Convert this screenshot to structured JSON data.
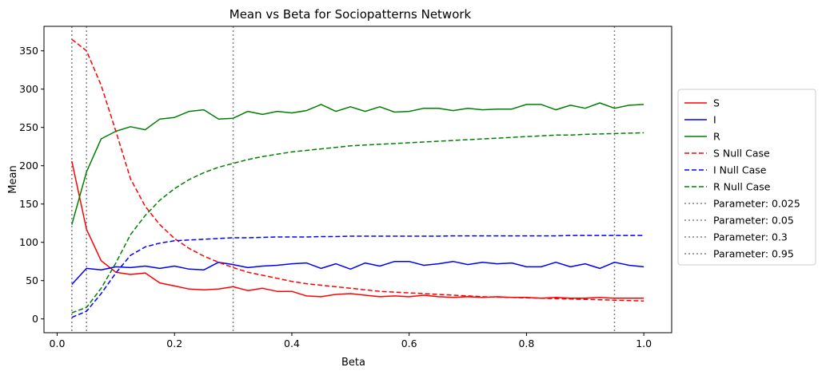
{
  "chart_data": {
    "type": "line",
    "title": "Mean vs Beta for Sociopatterns Network",
    "xlabel": "Beta",
    "ylabel": "Mean",
    "xlim": [
      -0.0225,
      1.0475
    ],
    "ylim": [
      -18,
      382
    ],
    "xticks": [
      0.0,
      0.2,
      0.4,
      0.6,
      0.8,
      1.0
    ],
    "xtick_labels": [
      "0.0",
      "0.2",
      "0.4",
      "0.6",
      "0.8",
      "1.0"
    ],
    "yticks": [
      0,
      50,
      100,
      150,
      200,
      250,
      300,
      350
    ],
    "ytick_labels": [
      "0",
      "50",
      "100",
      "150",
      "200",
      "250",
      "300",
      "350"
    ],
    "grid": false,
    "legend_position": "outside-right",
    "x": [
      0.025,
      0.05,
      0.075,
      0.1,
      0.125,
      0.15,
      0.175,
      0.2,
      0.225,
      0.25,
      0.275,
      0.3,
      0.325,
      0.35,
      0.375,
      0.4,
      0.425,
      0.45,
      0.475,
      0.5,
      0.525,
      0.55,
      0.575,
      0.6,
      0.625,
      0.65,
      0.675,
      0.7,
      0.725,
      0.75,
      0.775,
      0.8,
      0.825,
      0.85,
      0.875,
      0.9,
      0.925,
      0.95,
      0.975,
      1.0
    ],
    "series": [
      {
        "name": "S",
        "color": "#ff0000",
        "style": "solid",
        "values": [
          206,
          117,
          76,
          61,
          58,
          60,
          47,
          43,
          39,
          38,
          39,
          42,
          37,
          40,
          36,
          36,
          30,
          29,
          32,
          33,
          31,
          29,
          30,
          29,
          31,
          29,
          28,
          29,
          28,
          29,
          28,
          28,
          27,
          28,
          27,
          27,
          28,
          27,
          27,
          27
        ]
      },
      {
        "name": "I",
        "color": "#0000ff",
        "style": "solid",
        "values": [
          45,
          66,
          64,
          68,
          67,
          69,
          66,
          69,
          65,
          64,
          74,
          71,
          67,
          69,
          70,
          72,
          73,
          66,
          72,
          65,
          73,
          69,
          75,
          75,
          70,
          72,
          75,
          71,
          74,
          72,
          73,
          68,
          68,
          74,
          68,
          72,
          66,
          74,
          70,
          68
        ]
      },
      {
        "name": "R",
        "color": "#008000",
        "style": "solid",
        "values": [
          123,
          192,
          235,
          245,
          251,
          247,
          261,
          263,
          271,
          273,
          261,
          262,
          271,
          267,
          271,
          269,
          272,
          280,
          271,
          277,
          271,
          277,
          270,
          271,
          275,
          275,
          272,
          275,
          273,
          274,
          274,
          280,
          280,
          273,
          279,
          275,
          282,
          275,
          279,
          280
        ]
      },
      {
        "name": "S Null Case",
        "color": "#ff0000",
        "style": "dashed",
        "values": [
          365,
          350,
          305,
          245,
          183,
          147,
          123,
          105,
          92,
          82,
          74,
          67,
          61,
          57,
          53,
          49,
          46,
          44,
          42,
          40,
          38,
          36,
          35,
          34,
          33,
          32,
          31,
          30,
          29,
          28.5,
          28,
          27.5,
          27,
          26.5,
          26,
          25.5,
          25,
          24.5,
          24,
          23.5
        ]
      },
      {
        "name": "I Null Case",
        "color": "#0000ff",
        "style": "dashed",
        "values": [
          2,
          10,
          33,
          60,
          83,
          94,
          99,
          102,
          103,
          104,
          105,
          106,
          106,
          106.5,
          107,
          107,
          107,
          107.5,
          107.5,
          108,
          108,
          108,
          108,
          108,
          108,
          108,
          108.5,
          108.5,
          108.5,
          108.5,
          108.5,
          108.5,
          108.5,
          108.5,
          109,
          109,
          109,
          109,
          109,
          109
        ]
      },
      {
        "name": "R Null Case",
        "color": "#008000",
        "style": "dashed",
        "values": [
          8,
          15,
          40,
          73,
          110,
          135,
          155,
          170,
          182,
          191,
          198,
          203,
          208,
          212,
          215,
          218,
          220,
          222,
          224,
          226,
          227,
          228,
          229,
          230,
          231,
          232,
          233,
          234,
          235,
          236,
          237,
          238,
          239,
          240,
          240,
          241,
          241.5,
          242,
          242.5,
          243
        ]
      }
    ],
    "vlines": [
      {
        "name": "Parameter: 0.025",
        "x": 0.025,
        "color": "#808080",
        "style": "dotted"
      },
      {
        "name": "Parameter: 0.05",
        "x": 0.05,
        "color": "#808080",
        "style": "dotted"
      },
      {
        "name": "Parameter: 0.3",
        "x": 0.3,
        "color": "#808080",
        "style": "dotted"
      },
      {
        "name": "Parameter: 0.95",
        "x": 0.95,
        "color": "#808080",
        "style": "dotted"
      }
    ]
  }
}
